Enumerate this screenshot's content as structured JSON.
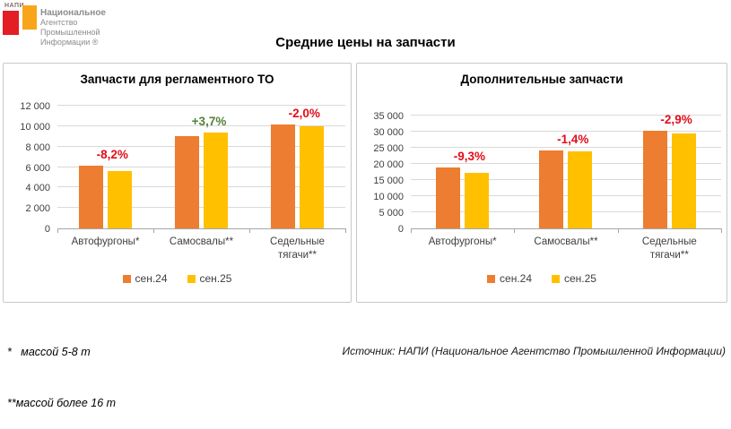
{
  "logo": {
    "napi_text": "НАПИ",
    "org_lines": [
      "Национальное",
      "Агентство",
      "Промышленной",
      "Информации ®"
    ],
    "red_square_color": "#e31e24",
    "orange_square_color": "#f9a51a"
  },
  "title": "Средние цены на запчасти",
  "legend": [
    {
      "label": "сен.24",
      "color": "#ed7d31"
    },
    {
      "label": "сен.25",
      "color": "#ffc000"
    }
  ],
  "colors": {
    "sep24": "#ed7d31",
    "sep25": "#ffc000",
    "up": "#548235",
    "down": "#e20d18",
    "grid": "#d9d9d9",
    "axis": "#a6a6a6"
  },
  "chart_data": [
    {
      "type": "bar",
      "title": "Запчасти для регламентного ТО",
      "categories": [
        "Автофургоны*",
        "Самосвалы**",
        "Седельные тягачи**"
      ],
      "series": [
        {
          "name": "сен.24",
          "values": [
            6100,
            9000,
            10200
          ]
        },
        {
          "name": "сен.25",
          "values": [
            5600,
            9330,
            10000
          ]
        }
      ],
      "change_labels": [
        "-8,2%",
        "+3,7%",
        "-2,0%"
      ],
      "change_directions": [
        "down",
        "up",
        "down"
      ],
      "ylim": [
        0,
        12000
      ],
      "yticks": [
        "0",
        "2 000",
        "4 000",
        "6 000",
        "8 000",
        "10 000",
        "12 000"
      ],
      "grid": true,
      "legend_position": "bottom"
    },
    {
      "type": "bar",
      "title": "Дополнительные запчасти",
      "categories": [
        "Автофургоны*",
        "Самосвалы**",
        "Седельные тягачи**"
      ],
      "series": [
        {
          "name": "сен.24",
          "values": [
            19000,
            24100,
            30400
          ]
        },
        {
          "name": "сен.25",
          "values": [
            17230,
            23760,
            29520
          ]
        }
      ],
      "change_labels": [
        "-9,3%",
        "-1,4%",
        "-2,9%"
      ],
      "change_directions": [
        "down",
        "down",
        "down"
      ],
      "ylim": [
        0,
        35000
      ],
      "yticks": [
        "0",
        "5 000",
        "10 000",
        "15 000",
        "20 000",
        "25 000",
        "30 000",
        "35 000"
      ],
      "grid": true,
      "legend_position": "bottom"
    }
  ],
  "footnotes": [
    "*   массой 5-8 т",
    "**массой более 16 т"
  ],
  "source": "Источник: НАПИ (Национальное Агентство Промышленной Информации)"
}
